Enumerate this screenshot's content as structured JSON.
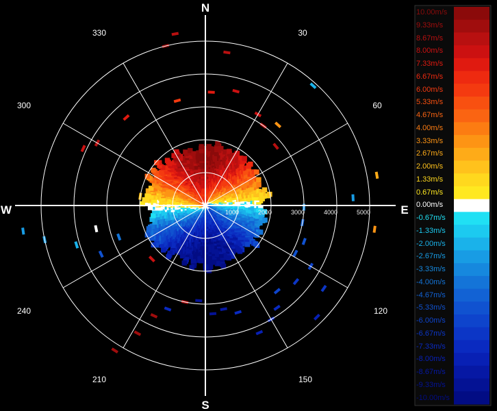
{
  "chart_data": {
    "type": "heatmap",
    "title": "",
    "compass": [
      "N",
      "E",
      "S",
      "W"
    ],
    "bearing_ticks": [
      30,
      60,
      120,
      150,
      210,
      240,
      300,
      330
    ],
    "range_rings": [
      1000,
      2000,
      3000,
      4000,
      5000
    ],
    "range_max": 5000,
    "colorbar": {
      "labels": [
        "10.00m/s",
        "9.33m/s",
        "8.67m/s",
        "8.00m/s",
        "7.33m/s",
        "6.67m/s",
        "6.00m/s",
        "5.33m/s",
        "4.67m/s",
        "4.00m/s",
        "3.33m/s",
        "2.67m/s",
        "2.00m/s",
        "1.33m/s",
        "0.67m/s",
        "0.00m/s",
        "-0.67m/s",
        "-1.33m/s",
        "-2.00m/s",
        "-2.67m/s",
        "-3.33m/s",
        "-4.00m/s",
        "-4.67m/s",
        "-5.33m/s",
        "-6.00m/s",
        "-6.67m/s",
        "-7.33m/s",
        "-8.00m/s",
        "-8.67m/s",
        "-9.33m/s",
        "-10.00m/s"
      ],
      "colors": [
        "#8b0a0a",
        "#a00d0d",
        "#b81010",
        "#cc1111",
        "#e01a10",
        "#ee2a10",
        "#f43a10",
        "#f85010",
        "#fa6412",
        "#fc7c12",
        "#fd9414",
        "#feab18",
        "#ffc21c",
        "#ffd81e",
        "#ffe820",
        "#ffffff",
        "#20e0f4",
        "#1ccaf0",
        "#1ab2ea",
        "#189ce4",
        "#1688de",
        "#1474d8",
        "#1262d4",
        "#1052d0",
        "#0e44cc",
        "#0c36c6",
        "#0a2ac0",
        "#0820b4",
        "#0618a4",
        "#041294",
        "#020c84"
      ]
    },
    "velocity_field": {
      "extent_range": [
        1600,
        2000
      ],
      "approaching_sector_deg": [
        -88,
        90
      ],
      "receding_sector_deg": [
        90,
        272
      ],
      "max_speed": 10.0
    },
    "scatter_echoes": [
      {
        "az": 8,
        "r": 4700,
        "v": 9.0
      },
      {
        "az": 15,
        "r": 3600,
        "v": 8.3
      },
      {
        "az": 3,
        "r": 3450,
        "v": 7.4
      },
      {
        "az": 30,
        "r": 3200,
        "v": 8.3
      },
      {
        "az": 36,
        "r": 3000,
        "v": 8.8
      },
      {
        "az": 42,
        "r": 3300,
        "v": 3.6
      },
      {
        "az": 50,
        "r": 2800,
        "v": 8.8
      },
      {
        "az": 42,
        "r": 4900,
        "v": -2.0
      },
      {
        "az": 87,
        "r": 4500,
        "v": -2.4
      },
      {
        "az": 80,
        "r": 5300,
        "v": 2.4
      },
      {
        "az": 98,
        "r": 5200,
        "v": 3.3
      },
      {
        "az": 91,
        "r": 3000,
        "v": -3.3
      },
      {
        "az": 100,
        "r": 3000,
        "v": -4.6
      },
      {
        "az": 110,
        "r": 3200,
        "v": -5.4
      },
      {
        "az": 118,
        "r": 3100,
        "v": -5.6
      },
      {
        "az": 120,
        "r": 3700,
        "v": -6.0
      },
      {
        "az": 125,
        "r": 4400,
        "v": -6.6
      },
      {
        "az": 130,
        "r": 3600,
        "v": -6.8
      },
      {
        "az": 135,
        "r": 4800,
        "v": -8.0
      },
      {
        "az": 140,
        "r": 3400,
        "v": -6.2
      },
      {
        "az": 145,
        "r": 3800,
        "v": -7.0
      },
      {
        "az": 150,
        "r": 4000,
        "v": -7.4
      },
      {
        "az": 157,
        "r": 4200,
        "v": -8.2
      },
      {
        "az": 163,
        "r": 3400,
        "v": -7.6
      },
      {
        "az": 170,
        "r": 3200,
        "v": -8.8
      },
      {
        "az": 176,
        "r": 3300,
        "v": -9.0
      },
      {
        "az": 184,
        "r": 2900,
        "v": -9.3
      },
      {
        "az": 192,
        "r": 3000,
        "v": 8.8
      },
      {
        "az": 200,
        "r": 3350,
        "v": -7.6
      },
      {
        "az": 205,
        "r": 3700,
        "v": 9.3
      },
      {
        "az": 208,
        "r": 4400,
        "v": 9.3
      },
      {
        "az": 212,
        "r": 5200,
        "v": 9.6
      },
      {
        "az": 225,
        "r": 2300,
        "v": 8.3
      },
      {
        "az": 245,
        "r": 3500,
        "v": -5.0
      },
      {
        "az": 250,
        "r": 2800,
        "v": -4.0
      },
      {
        "az": 253,
        "r": 4100,
        "v": -1.8
      },
      {
        "az": 258,
        "r": 5000,
        "v": -2.4
      },
      {
        "az": 258,
        "r": 3400,
        "v": 0.0
      },
      {
        "az": 262,
        "r": 5600,
        "v": -2.4
      },
      {
        "az": 278,
        "r": 2000,
        "v": 2.0
      },
      {
        "az": 295,
        "r": 4100,
        "v": 8.3
      },
      {
        "az": 300,
        "r": 3800,
        "v": 9.0
      },
      {
        "az": 318,
        "r": 3600,
        "v": 7.2
      },
      {
        "az": 345,
        "r": 3300,
        "v": 6.0
      },
      {
        "az": 346,
        "r": 5000,
        "v": 9.3
      },
      {
        "az": 350,
        "r": 5300,
        "v": 9.0
      }
    ]
  }
}
